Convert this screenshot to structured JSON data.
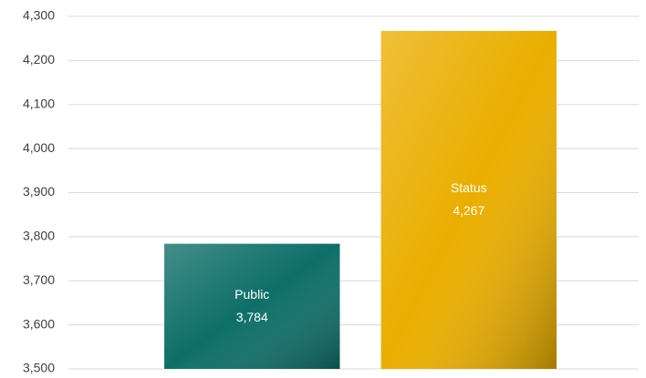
{
  "chart_data": {
    "type": "bar",
    "categories": [
      "Public",
      "Status"
    ],
    "values": [
      3784,
      4267
    ],
    "value_labels": [
      "3,784",
      "4,267"
    ],
    "colors": [
      "#0e6e68",
      "#eaae00"
    ],
    "ylim": [
      3500,
      4300
    ],
    "yticks": [
      {
        "value": 3500,
        "label": "3,500"
      },
      {
        "value": 3600,
        "label": "3,600"
      },
      {
        "value": 3700,
        "label": "3,700"
      },
      {
        "value": 3800,
        "label": "3,800"
      },
      {
        "value": 3900,
        "label": "3,900"
      },
      {
        "value": 4000,
        "label": "4,000"
      },
      {
        "value": 4100,
        "label": "4,100"
      },
      {
        "value": 4200,
        "label": "4,200"
      },
      {
        "value": 4300,
        "label": "4,300"
      }
    ],
    "grid": true
  }
}
